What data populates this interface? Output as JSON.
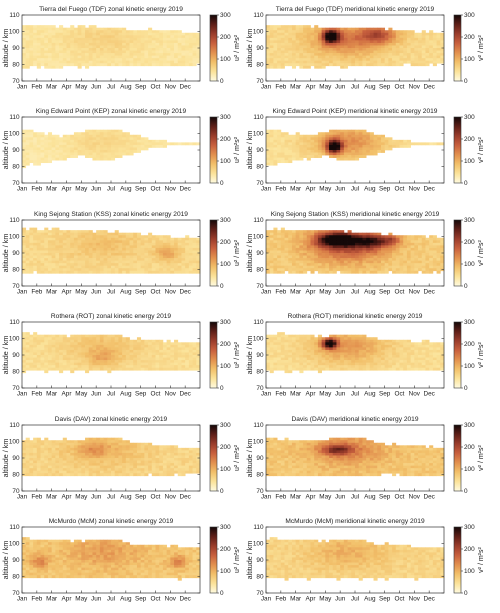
{
  "figure": {
    "months": [
      "Jan",
      "Feb",
      "Mar",
      "Apr",
      "May",
      "Jun",
      "Jul",
      "Aug",
      "Sep",
      "Oct",
      "Nov",
      "Dec"
    ],
    "altitude_ticks": [
      70,
      80,
      90,
      100,
      110
    ],
    "ylabel": "altitude / km",
    "colorbar_ticks": [
      0,
      100,
      200,
      300
    ],
    "zonal_unit": "u² / m²s²",
    "meridional_unit": "v² / m²s²",
    "colormap": [
      "#fffbe0",
      "#fbe39a",
      "#f2c06a",
      "#e2904e",
      "#c8603e",
      "#9a3d2c",
      "#5e1f18",
      "#140808"
    ]
  },
  "chart_data": [
    {
      "type": "heatmap",
      "id": "tdf-u",
      "component": "zonal",
      "title": "Tierra del Fuego (TDF) zonal kinetic energy 2019",
      "ylabel": "altitude / km",
      "colorbar_label": "u² / m²s²",
      "ylim": [
        70,
        110
      ],
      "clim": [
        0,
        300
      ],
      "coverage_km": [
        [
          78,
          104
        ],
        [
          101,
          80
        ]
      ],
      "base": 40,
      "season_gain": 25,
      "hotspots": []
    },
    {
      "type": "heatmap",
      "id": "tdf-v",
      "component": "meridional",
      "title": "Tierra del Fuego (TDF) meridional kinetic energy 2019",
      "ylabel": "altitude / km",
      "colorbar_label": "v² / m²s²",
      "ylim": [
        70,
        110
      ],
      "clim": [
        0,
        300
      ],
      "coverage_km": [
        [
          78,
          104
        ],
        [
          101,
          80
        ]
      ],
      "base": 55,
      "season_gain": 90,
      "hotspots": [
        {
          "month": 4.4,
          "alt_km": 97,
          "value_2": 260,
          "spread_months": 0.55,
          "spread_km": 4
        },
        {
          "month": 7.6,
          "alt_km": 98,
          "value_2": 110,
          "spread_months": 1.2,
          "spread_km": 5
        }
      ]
    },
    {
      "type": "heatmap",
      "id": "kep-u",
      "component": "zonal",
      "title": "King Edward Point (KEP) zonal kinetic energy 2019",
      "ylabel": "altitude / km",
      "colorbar_label": "u² / m²s²",
      "ylim": [
        70,
        110
      ],
      "clim": [
        0,
        300
      ],
      "coverage_km": [
        [
          80,
          103
        ],
        [
          84,
          100
        ]
      ],
      "base": 35,
      "season_gain": 25,
      "hotspots": []
    },
    {
      "type": "heatmap",
      "id": "kep-v",
      "component": "meridional",
      "title": "King Edward Point (KEP) meridional kinetic energy 2019",
      "ylabel": "altitude / km",
      "colorbar_label": "v² / m²s²",
      "ylim": [
        70,
        110
      ],
      "clim": [
        0,
        300
      ],
      "coverage_km": [
        [
          80,
          103
        ],
        [
          84,
          100
        ]
      ],
      "base": 45,
      "season_gain": 85,
      "hotspots": [
        {
          "month": 4.6,
          "alt_km": 92,
          "value_2": 260,
          "spread_months": 0.5,
          "spread_km": 4
        }
      ]
    },
    {
      "type": "heatmap",
      "id": "kss-u",
      "component": "zonal",
      "title": "King Sejong Station (KSS) zonal kinetic energy 2019",
      "ylabel": "altitude / km",
      "colorbar_label": "u² / m²s²",
      "ylim": [
        70,
        110
      ],
      "clim": [
        0,
        300
      ],
      "coverage_km": [
        [
          78,
          105
        ],
        [
          101,
          78
        ]
      ],
      "base": 55,
      "season_gain": 30,
      "hotspots": [
        {
          "month": 9.8,
          "alt_km": 90,
          "value_2": 55,
          "spread_months": 0.8,
          "spread_km": 5
        }
      ]
    },
    {
      "type": "heatmap",
      "id": "kss-v",
      "component": "meridional",
      "title": "King Sejong Station (KSS) meridional kinetic energy 2019",
      "ylabel": "altitude / km",
      "colorbar_label": "v² / m²s²",
      "ylim": [
        70,
        110
      ],
      "clim": [
        0,
        300
      ],
      "coverage_km": [
        [
          78,
          105
        ],
        [
          101,
          78
        ]
      ],
      "base": 70,
      "season_gain": 130,
      "hotspots": [
        {
          "month": 4.8,
          "alt_km": 98,
          "value_2": 220,
          "spread_months": 1.3,
          "spread_km": 4
        },
        {
          "month": 7.2,
          "alt_km": 97,
          "value_2": 140,
          "spread_months": 1.1,
          "spread_km": 4
        },
        {
          "month": 8.5,
          "alt_km": 98,
          "value_2": 80,
          "spread_months": 0.6,
          "spread_km": 3
        }
      ]
    },
    {
      "type": "heatmap",
      "id": "rot-u",
      "component": "zonal",
      "title": "Rothera (ROT) zonal kinetic energy 2019",
      "ylabel": "altitude / km",
      "colorbar_label": "u² / m²s²",
      "ylim": [
        70,
        110
      ],
      "clim": [
        0,
        300
      ],
      "coverage_km": [
        [
          80,
          103
        ],
        [
          99,
          81
        ]
      ],
      "base": 50,
      "season_gain": 35,
      "hotspots": [
        {
          "month": 5.4,
          "alt_km": 88,
          "value_2": 40,
          "spread_months": 1,
          "spread_km": 5
        }
      ]
    },
    {
      "type": "heatmap",
      "id": "rot-v",
      "component": "meridional",
      "title": "Rothera (ROT) meridional kinetic energy 2019",
      "ylabel": "altitude / km",
      "colorbar_label": "v² / m²s²",
      "ylim": [
        70,
        110
      ],
      "clim": [
        0,
        300
      ],
      "coverage_km": [
        [
          80,
          103
        ],
        [
          99,
          81
        ]
      ],
      "base": 50,
      "season_gain": 70,
      "hotspots": [
        {
          "month": 4.3,
          "alt_km": 97,
          "value_2": 250,
          "spread_months": 0.5,
          "spread_km": 3
        }
      ]
    },
    {
      "type": "heatmap",
      "id": "dav-u",
      "component": "zonal",
      "title": "Davis (DAV) zonal kinetic energy 2019",
      "ylabel": "altitude / km",
      "colorbar_label": "u² / m²s²",
      "ylim": [
        70,
        110
      ],
      "clim": [
        0,
        300
      ],
      "coverage_km": [
        [
          79,
          102
        ],
        [
          98,
          80
        ]
      ],
      "base": 60,
      "season_gain": 35,
      "hotspots": [
        {
          "month": 4.8,
          "alt_km": 95,
          "value_2": 40,
          "spread_months": 1,
          "spread_km": 4
        }
      ]
    },
    {
      "type": "heatmap",
      "id": "dav-v",
      "component": "meridional",
      "title": "Davis (DAV) meridional kinetic energy 2019",
      "ylabel": "altitude / km",
      "colorbar_label": "v² / m²s²",
      "ylim": [
        70,
        110
      ],
      "clim": [
        0,
        300
      ],
      "coverage_km": [
        [
          79,
          102
        ],
        [
          98,
          80
        ]
      ],
      "base": 75,
      "season_gain": 60,
      "hotspots": [
        {
          "month": 4.8,
          "alt_km": 95,
          "value_2": 130,
          "spread_months": 1,
          "spread_km": 3
        }
      ]
    },
    {
      "type": "heatmap",
      "id": "mcm-u",
      "component": "zonal",
      "title": "McMurdo (McM) zonal kinetic energy 2019",
      "ylabel": "altitude / km",
      "colorbar_label": "u² / m²s²",
      "ylim": [
        70,
        110
      ],
      "clim": [
        0,
        300
      ],
      "coverage_km": [
        [
          79,
          103
        ],
        [
          99,
          79
        ]
      ],
      "base": 75,
      "season_gain": 40,
      "hotspots": [
        {
          "month": 1.2,
          "alt_km": 89,
          "value_2": 60,
          "spread_months": 0.6,
          "spread_km": 4
        },
        {
          "month": 10.5,
          "alt_km": 89,
          "value_2": 60,
          "spread_months": 0.6,
          "spread_km": 4
        }
      ]
    },
    {
      "type": "heatmap",
      "id": "mcm-v",
      "component": "meridional",
      "title": "McMurdo (McM) meridional kinetic energy 2019",
      "ylabel": "altitude / km",
      "colorbar_label": "v² / m²s²",
      "ylim": [
        70,
        110
      ],
      "clim": [
        0,
        300
      ],
      "coverage_km": [
        [
          79,
          103
        ],
        [
          99,
          79
        ]
      ],
      "base": 60,
      "season_gain": 40,
      "hotspots": []
    }
  ]
}
